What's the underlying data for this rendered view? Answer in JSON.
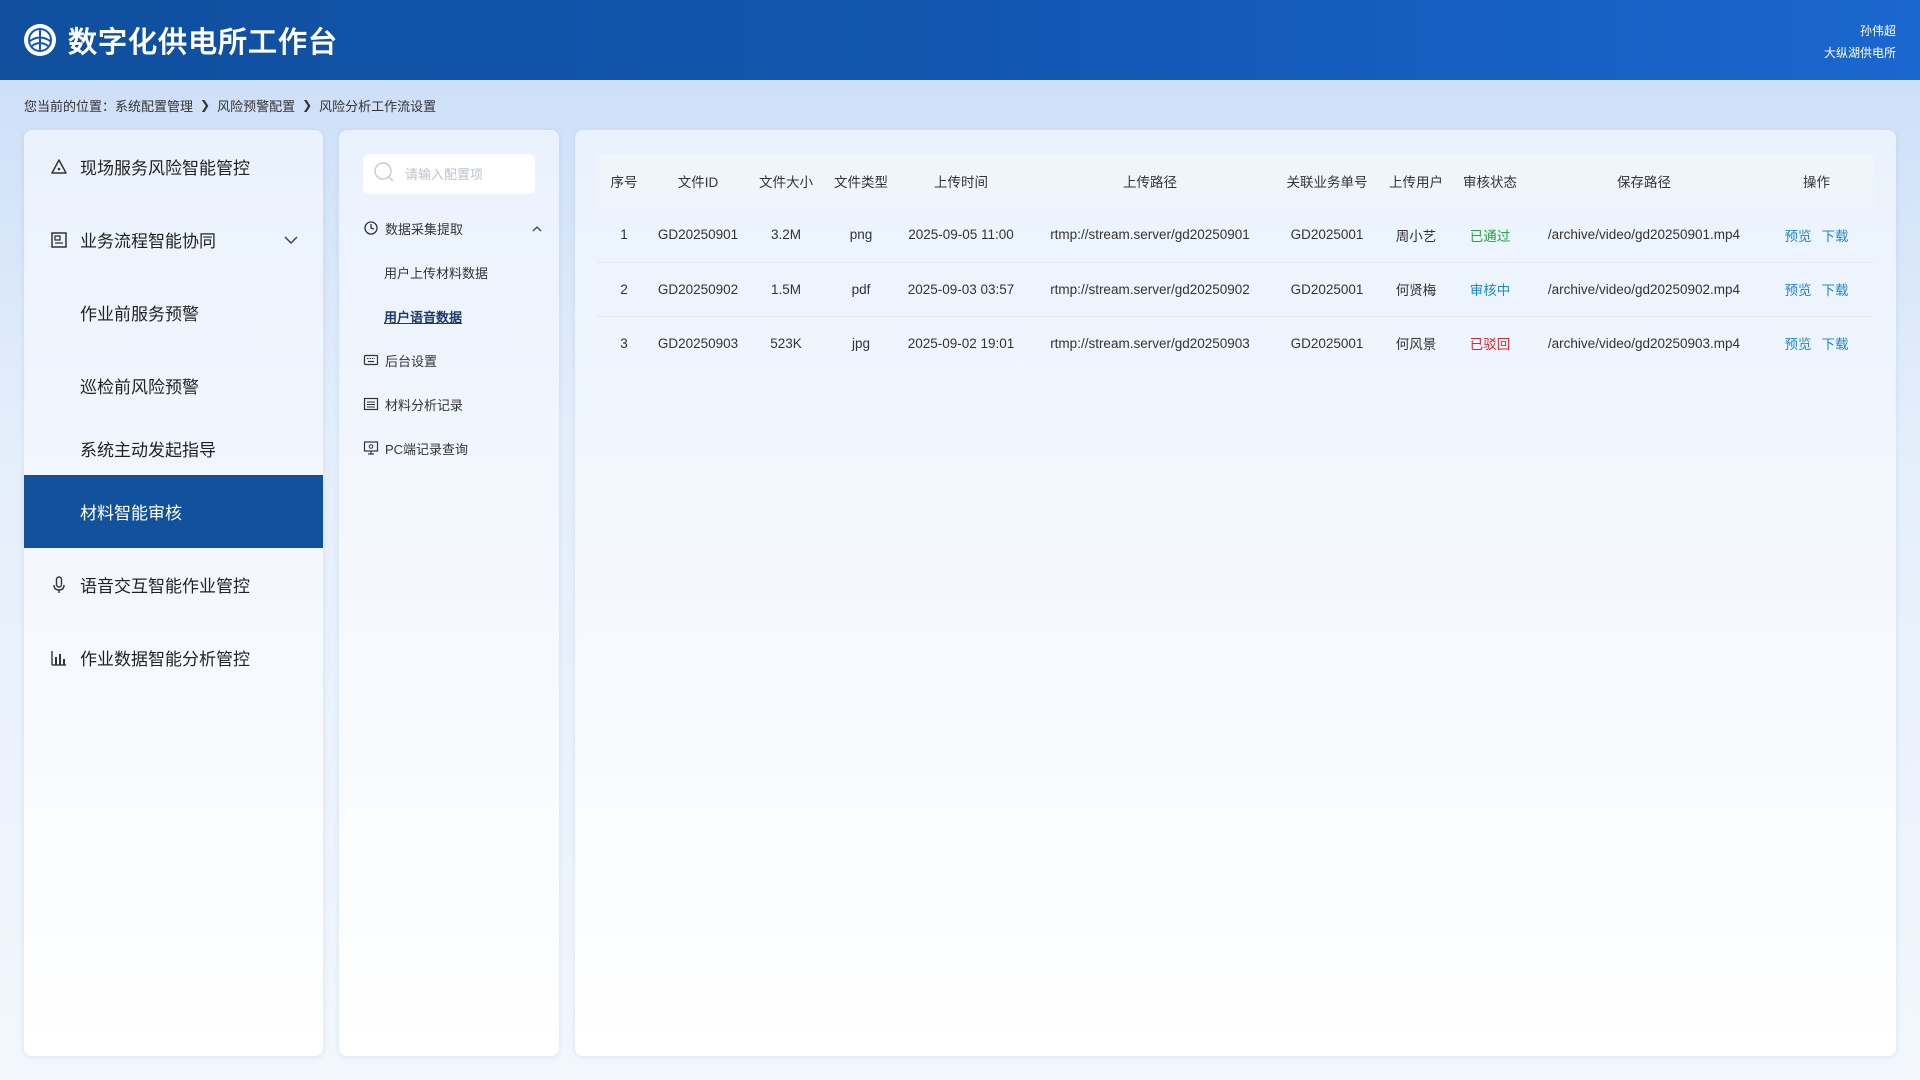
{
  "header": {
    "title": "数字化供电所工作台",
    "user_name": "孙伟超",
    "org_name": "大纵湖供电所"
  },
  "breadcrumb": {
    "prefix": "您当前的位置：",
    "items": [
      "系统配置管理",
      "风险预警配置",
      "风险分析工作流设置"
    ]
  },
  "left_nav": {
    "items": [
      {
        "label": "现场服务风险智能管控",
        "icon": "warning-triangle-icon"
      },
      {
        "label": "业务流程智能协同",
        "icon": "document-icon"
      },
      {
        "label": "作业前服务预警"
      },
      {
        "label": "巡检前风险预警"
      },
      {
        "label": "系统主动发起指导"
      },
      {
        "label": "材料智能审核"
      },
      {
        "label": "语音交互智能作业管控",
        "icon": "microphone-icon"
      },
      {
        "label": "作业数据智能分析管控",
        "icon": "bar-chart-icon"
      }
    ]
  },
  "mid_nav": {
    "search_placeholder": "请输入配置项",
    "items": [
      {
        "label": "数据采集提取",
        "icon": "refresh-icon"
      },
      {
        "label": "用户上传材料数据"
      },
      {
        "label": "用户语音数据"
      },
      {
        "label": "后台设置",
        "icon": "keyboard-icon"
      },
      {
        "label": "材料分析记录",
        "icon": "list-icon"
      },
      {
        "label": "PC端记录查询",
        "icon": "monitor-icon"
      }
    ]
  },
  "table": {
    "columns": [
      "序号",
      "文件ID",
      "文件大小",
      "文件类型",
      "上传时间",
      "上传路径",
      "关联业务单号",
      "上传用户",
      "审核状态",
      "保存路径",
      "操作"
    ],
    "rows": [
      {
        "no": "1",
        "id": "GD20250901",
        "size": "3.2M",
        "type": "png",
        "time": "2025-09-05 11:00",
        "path": "rtmp://stream.server/gd20250901",
        "order": "GD2025001",
        "user": "周小艺",
        "status": "已通过",
        "save": "/archive/video/gd20250901.mp4"
      },
      {
        "no": "2",
        "id": "GD20250902",
        "size": "1.5M",
        "type": "pdf",
        "time": "2025-09-03 03:57",
        "path": "rtmp://stream.server/gd20250902",
        "order": "GD2025001",
        "user": "何贤梅",
        "status": "审核中",
        "save": "/archive/video/gd20250902.mp4"
      },
      {
        "no": "3",
        "id": "GD20250903",
        "size": "523K",
        "type": "jpg",
        "time": "2025-09-02 19:01",
        "path": "rtmp://stream.server/gd20250903",
        "order": "GD2025001",
        "user": "何风景",
        "status": "已驳回",
        "save": "/archive/video/gd20250903.mp4"
      }
    ],
    "actions": {
      "preview": "预览",
      "download": "下载"
    }
  },
  "colors": {
    "header": "#1257b3",
    "active_nav": "#12529c",
    "status_pass": "#26a33a",
    "status_review": "#1f86d6",
    "status_reject": "#e0252b",
    "link": "#1f86d6"
  }
}
